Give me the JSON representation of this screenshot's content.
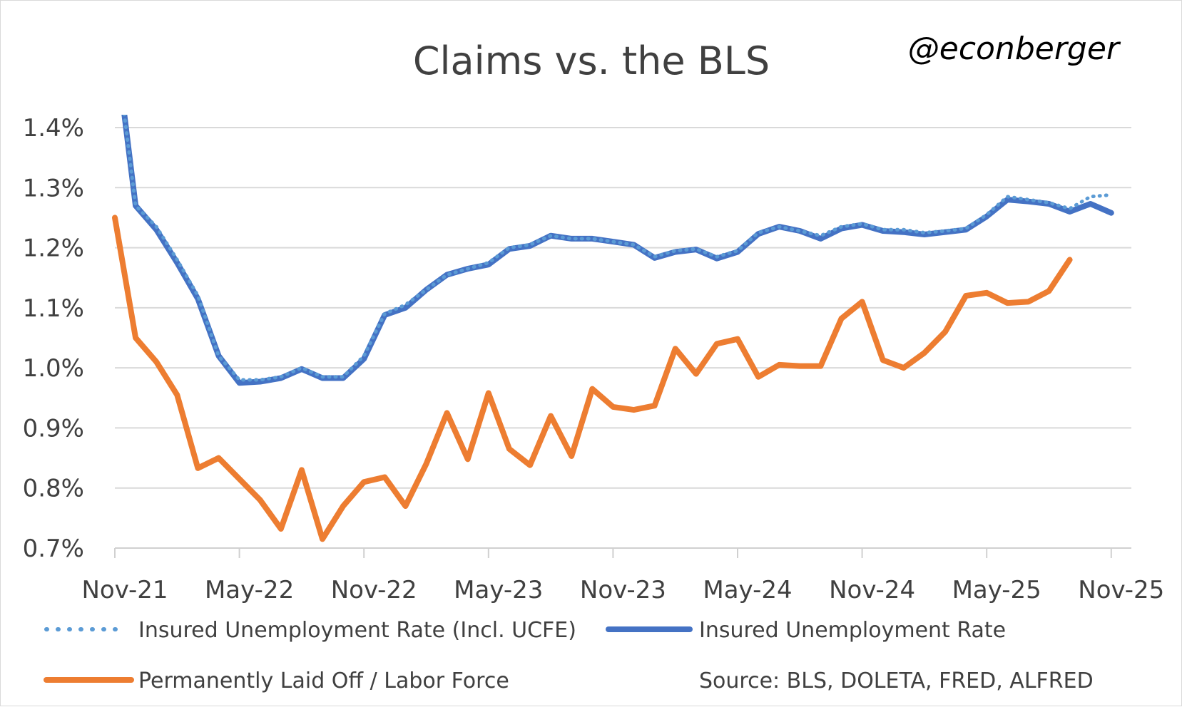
{
  "chart_data": {
    "type": "line",
    "title": "Claims vs. the BLS",
    "handle": "@econberger",
    "source": "Source: BLS, DOLETA, FRED, ALFRED",
    "x_start": "Nov-21",
    "x_step": "month",
    "x_tick_labels": [
      "Nov-21",
      "May-22",
      "Nov-22",
      "May-23",
      "Nov-23",
      "May-24",
      "Nov-24",
      "May-25",
      "Nov-25"
    ],
    "y_tick_labels": [
      "0.7%",
      "0.8%",
      "0.9%",
      "1.0%",
      "1.1%",
      "1.2%",
      "1.3%",
      "1.4%"
    ],
    "ylim": [
      0.7,
      1.4
    ],
    "grid": true,
    "legend_position": "bottom",
    "series": [
      {
        "name": "Insured Unemployment Rate (Incl. UCFE)",
        "style": "dotted",
        "color": "#5b9bd5",
        "values": [
          1.55,
          1.27,
          1.235,
          1.18,
          1.12,
          1.02,
          0.98,
          0.98,
          0.985,
          1.0,
          0.985,
          0.985,
          1.02,
          1.09,
          1.105,
          1.13,
          1.155,
          1.165,
          1.175,
          1.2,
          1.205,
          1.22,
          1.215,
          1.215,
          1.21,
          1.205,
          1.185,
          1.195,
          1.198,
          1.185,
          1.195,
          1.225,
          1.235,
          1.228,
          1.22,
          1.235,
          1.24,
          1.23,
          1.23,
          1.225,
          1.228,
          1.232,
          1.255,
          1.285,
          1.28,
          1.275,
          1.265,
          1.285,
          1.288
        ]
      },
      {
        "name": "Insured Unemployment Rate",
        "style": "solid",
        "color": "#4472c4",
        "values": [
          1.55,
          1.27,
          1.23,
          1.175,
          1.115,
          1.02,
          0.975,
          0.977,
          0.983,
          0.998,
          0.983,
          0.983,
          1.015,
          1.088,
          1.1,
          1.13,
          1.155,
          1.165,
          1.172,
          1.198,
          1.203,
          1.22,
          1.215,
          1.215,
          1.21,
          1.205,
          1.183,
          1.193,
          1.197,
          1.182,
          1.193,
          1.223,
          1.235,
          1.228,
          1.215,
          1.232,
          1.238,
          1.228,
          1.226,
          1.222,
          1.226,
          1.23,
          1.252,
          1.28,
          1.277,
          1.273,
          1.26,
          1.273,
          1.258
        ]
      },
      {
        "name": "Permanently Laid Off / Labor Force",
        "style": "solid",
        "color": "#ed7d31",
        "values": [
          1.25,
          1.05,
          1.01,
          0.955,
          0.833,
          0.85,
          0.815,
          0.78,
          0.732,
          0.83,
          0.715,
          0.77,
          0.81,
          0.818,
          0.77,
          0.84,
          0.925,
          0.848,
          0.958,
          0.865,
          0.838,
          0.92,
          0.853,
          0.965,
          0.935,
          0.93,
          0.937,
          1.032,
          0.99,
          1.04,
          1.048,
          0.985,
          1.005,
          1.003,
          1.003,
          1.082,
          1.11,
          1.013,
          1.0,
          1.025,
          1.06,
          1.12,
          1.125,
          1.108,
          1.11,
          1.128,
          1.18
        ]
      }
    ]
  }
}
